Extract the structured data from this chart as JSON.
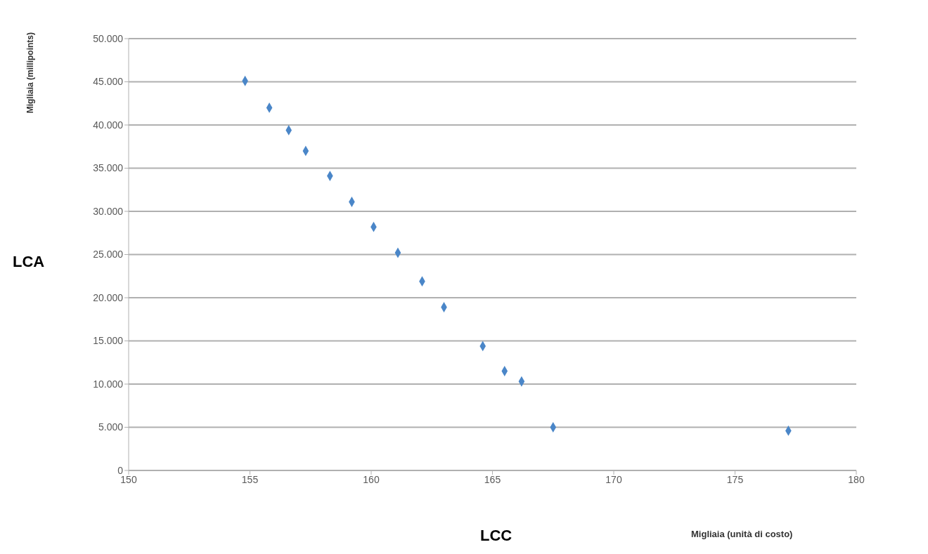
{
  "chart_data": {
    "type": "scatter",
    "xlabel": "LCC",
    "ylabel": "LCA",
    "annotations": [
      "Migliaia (millipoints)",
      "Migliaia (unità di costo)"
    ],
    "x": [
      154.8,
      155.8,
      156.6,
      157.3,
      158.3,
      159.2,
      160.1,
      161.1,
      162.1,
      163.0,
      164.6,
      165.5,
      166.2,
      167.5,
      177.2
    ],
    "series": [
      {
        "color": "#4a86c8",
        "values": [
          45100,
          42000,
          39400,
          37000,
          34100,
          31100,
          28200,
          25200,
          21900,
          18900,
          14400,
          11500,
          10300,
          5000,
          4600
        ]
      }
    ],
    "xlim": [
      150,
      180
    ],
    "xticks": [
      150,
      155,
      160,
      165,
      170,
      175,
      180
    ],
    "ylim": [
      0,
      50000
    ],
    "yticks": [
      0,
      {
        "value": 5000,
        "label": "5.000"
      },
      {
        "value": 10000,
        "label": "10.000"
      },
      {
        "value": 15000,
        "label": "15.000"
      },
      {
        "value": 20000,
        "label": "20.000"
      },
      {
        "value": 25000,
        "label": "25.000"
      },
      {
        "value": 30000,
        "label": "30.000"
      },
      {
        "value": 35000,
        "label": "35.000"
      },
      {
        "value": 40000,
        "label": "40.000"
      },
      {
        "value": 45000,
        "label": "45.000"
      },
      {
        "value": 50000,
        "label": "50.000"
      }
    ],
    "grid": "y",
    "marker": "diamond"
  }
}
